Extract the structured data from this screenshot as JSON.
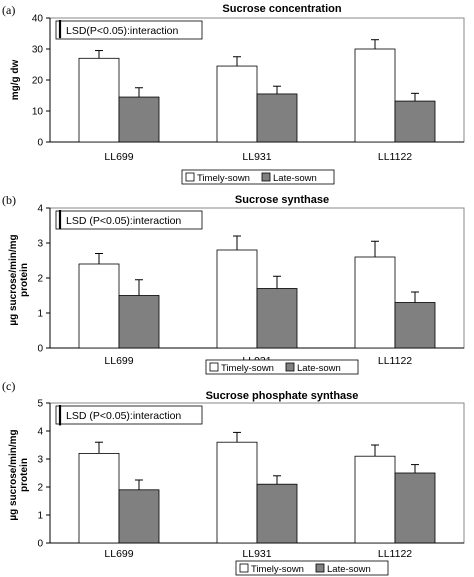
{
  "chart_data": [
    {
      "panel": "(a)",
      "type": "bar",
      "title": "Sucrose concentration",
      "ylabel": "mg/g dw",
      "xlabel": "",
      "ylim": [
        0,
        40
      ],
      "yticks": [
        0,
        10,
        20,
        30,
        40
      ],
      "categories": [
        "LL699",
        "LL931",
        "LL1122"
      ],
      "series": [
        {
          "name": "Timely-sown",
          "values": [
            27,
            24.5,
            30
          ],
          "errors": [
            2.5,
            3,
            3
          ],
          "color": "#ffffff"
        },
        {
          "name": "Late-sown",
          "values": [
            14.5,
            15.5,
            13.2
          ],
          "errors": [
            3,
            2.5,
            2.5
          ],
          "color": "#808080"
        }
      ],
      "annotation": "LSD(P<0.05):interaction",
      "lsd_bar_value": 6.5,
      "legend_position": "bottom"
    },
    {
      "panel": "(b)",
      "type": "bar",
      "title": "Sucrose synthase",
      "ylabel": "µg sucrose/min/mg protein",
      "xlabel": "",
      "ylim": [
        0,
        4
      ],
      "yticks": [
        0,
        1,
        2,
        3,
        4
      ],
      "categories": [
        "LL699",
        "LL931",
        "LL1122"
      ],
      "series": [
        {
          "name": "Timely-sown",
          "values": [
            2.4,
            2.8,
            2.6
          ],
          "errors": [
            0.3,
            0.4,
            0.45
          ],
          "color": "#ffffff"
        },
        {
          "name": "Late-sown",
          "values": [
            1.5,
            1.7,
            1.3
          ],
          "errors": [
            0.45,
            0.35,
            0.3
          ],
          "color": "#808080"
        }
      ],
      "annotation": "LSD (P<0.05):interaction",
      "lsd_bar_value": 0.6,
      "legend_position": "bottom"
    },
    {
      "panel": "(c)",
      "type": "bar",
      "title": "Sucrose phosphate synthase",
      "ylabel": "µg sucrose/min/mg protein",
      "xlabel": "",
      "ylim": [
        0,
        5
      ],
      "yticks": [
        0,
        1,
        2,
        3,
        4,
        5
      ],
      "categories": [
        "LL699",
        "LL931",
        "LL1122"
      ],
      "series": [
        {
          "name": "Timely-sown",
          "values": [
            3.2,
            3.6,
            3.1
          ],
          "errors": [
            0.4,
            0.35,
            0.4
          ],
          "color": "#ffffff"
        },
        {
          "name": "Late-sown",
          "values": [
            1.9,
            2.1,
            2.5
          ],
          "errors": [
            0.35,
            0.3,
            0.3
          ],
          "color": "#808080"
        }
      ],
      "annotation": "LSD (P<0.05):interaction",
      "lsd_bar_value": 0.8,
      "legend_position": "bottom"
    }
  ]
}
